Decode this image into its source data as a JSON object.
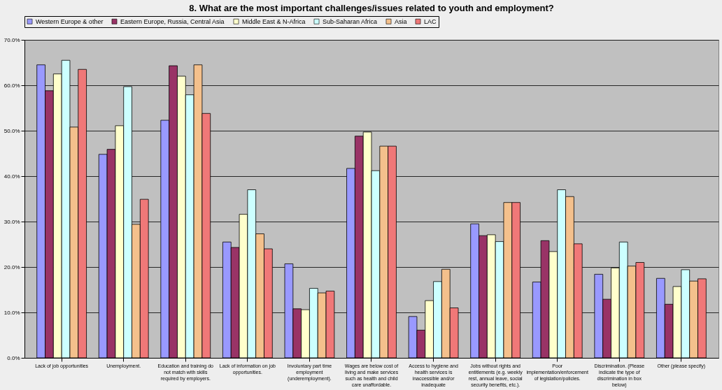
{
  "chart_data": {
    "type": "bar",
    "title": "8. What are the most important challenges/issues related to youth and employment?",
    "categories": [
      "Lack of job opportunities",
      "Unemployment.",
      "Education and training do not match with skills required by employers.",
      "Lack of information on job opportunities.",
      "Involuntary part time employment (underemployment).",
      "Wages are below  cost of living and make services such as health and child care unaffordable.",
      "Access to hygiene and health services is inaccessible and/or inadequate",
      "Jobs without rights and entitlements (e.g. weekly rest, annual leave, social security benefits, etc.).",
      "Poor implementation/enforcement of legislation/policies.",
      "Discrimination.  (Please indicate the type of discrimination in box below)",
      "Other (please specify)"
    ],
    "series": [
      {
        "name": "Western Europe & other",
        "color": "#9999ff",
        "values": [
          64.5,
          44.8,
          52.3,
          25.5,
          20.7,
          41.7,
          9.1,
          29.5,
          16.7,
          18.4,
          17.5
        ]
      },
      {
        "name": "Eastern Europe, Russia, Central Asia",
        "color": "#993366",
        "values": [
          58.8,
          45.9,
          64.3,
          24.3,
          10.8,
          48.8,
          6.1,
          26.9,
          25.8,
          12.9,
          11.8
        ]
      },
      {
        "name": "Middle East & N-Africa",
        "color": "#ffffcc",
        "values": [
          62.5,
          51.1,
          62.0,
          31.6,
          10.6,
          49.7,
          12.6,
          27.1,
          23.4,
          19.8,
          15.7
        ]
      },
      {
        "name": "Sub-Saharan Africa",
        "color": "#ccffff",
        "values": [
          65.5,
          59.7,
          57.9,
          37.0,
          15.3,
          41.2,
          16.8,
          25.6,
          37.0,
          25.5,
          19.4
        ]
      },
      {
        "name": "Asia",
        "color": "#f4c08c",
        "values": [
          50.8,
          29.4,
          64.5,
          27.3,
          14.3,
          46.6,
          19.5,
          34.2,
          35.5,
          20.2,
          16.9
        ]
      },
      {
        "name": "LAC",
        "color": "#f07878",
        "values": [
          63.5,
          34.9,
          53.8,
          24.0,
          14.7,
          46.6,
          11.0,
          34.2,
          25.1,
          21.0,
          17.4
        ]
      }
    ],
    "ylim": [
      0,
      70
    ],
    "yticks": [
      {
        "value": 0,
        "label": "0.0%"
      },
      {
        "value": 10,
        "label": "10.0%"
      },
      {
        "value": 20,
        "label": "20.0%"
      },
      {
        "value": 30,
        "label": "30.0%"
      },
      {
        "value": 40,
        "label": "40.0%"
      },
      {
        "value": 50,
        "label": "50.0%"
      },
      {
        "value": 60,
        "label": "60.0%"
      },
      {
        "value": 70,
        "label": "70.0%"
      }
    ],
    "grid": "y",
    "legend": "top"
  }
}
